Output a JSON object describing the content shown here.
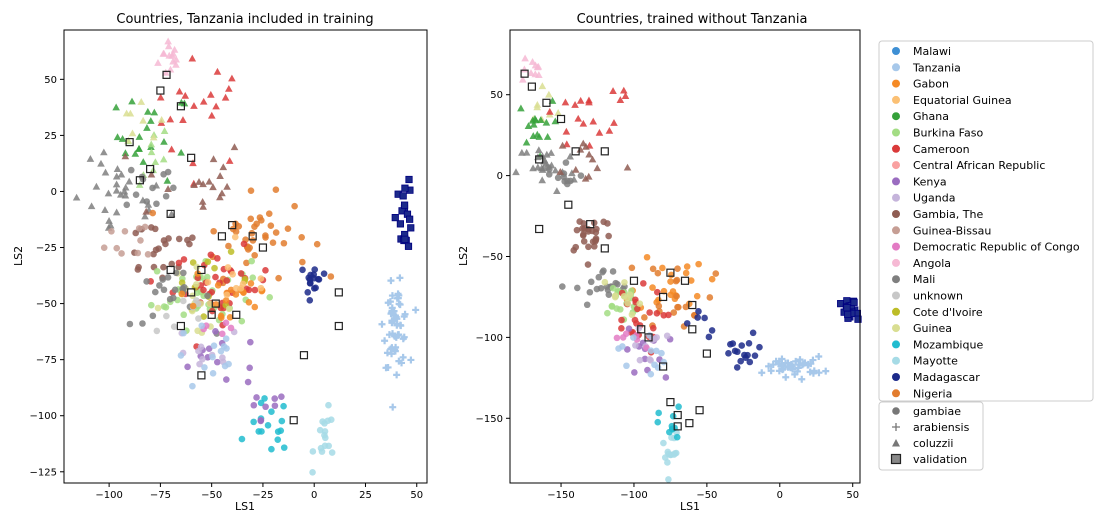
{
  "chart_data": [
    {
      "type": "scatter",
      "title": "Countries, Tanzania included in training",
      "xlabel": "LS1",
      "ylabel": "LS2",
      "xlim": [
        -122,
        55
      ],
      "ylim": [
        -130,
        72
      ],
      "xticks": [
        -100,
        -75,
        -50,
        -25,
        0,
        25,
        50
      ],
      "yticks": [
        -125,
        -100,
        -75,
        -50,
        -25,
        0,
        25,
        50
      ],
      "clusters": [
        {
          "country": "Angola",
          "marker": "triangle",
          "cx": -70,
          "cy": 60,
          "sx": 3,
          "sy": 5,
          "n": 14
        },
        {
          "country": "Cameroon",
          "marker": "triangle",
          "cx": -55,
          "cy": 35,
          "sx": 12,
          "sy": 12,
          "n": 20
        },
        {
          "country": "Ghana",
          "marker": "triangle",
          "cx": -78,
          "cy": 25,
          "sx": 9,
          "sy": 10,
          "n": 20
        },
        {
          "country": "Burkina Faso",
          "marker": "triangle",
          "cx": -85,
          "cy": 15,
          "sx": 8,
          "sy": 8,
          "n": 10
        },
        {
          "country": "Guinea",
          "marker": "triangle",
          "cx": -85,
          "cy": 30,
          "sx": 6,
          "sy": 6,
          "n": 8
        },
        {
          "country": "Mali",
          "marker": "triangle",
          "cx": -95,
          "cy": -5,
          "sx": 12,
          "sy": 9,
          "n": 30
        },
        {
          "country": "Mali",
          "marker": "circle",
          "cx": -80,
          "cy": 3,
          "sx": 6,
          "sy": 6,
          "n": 12
        },
        {
          "country": "Gambia, The",
          "marker": "triangle",
          "cx": -60,
          "cy": 5,
          "sx": 14,
          "sy": 10,
          "n": 18
        },
        {
          "country": "Gambia, The",
          "marker": "circle",
          "cx": -75,
          "cy": -25,
          "sx": 12,
          "sy": 8,
          "n": 22
        },
        {
          "country": "Guinea-Bissau",
          "marker": "circle",
          "cx": -85,
          "cy": -20,
          "sx": 8,
          "sy": 6,
          "n": 10
        },
        {
          "country": "Nigeria",
          "marker": "circle",
          "cx": -30,
          "cy": -20,
          "sx": 14,
          "sy": 9,
          "n": 40
        },
        {
          "country": "Burkina Faso",
          "marker": "circle",
          "cx": -55,
          "cy": -45,
          "sx": 12,
          "sy": 8,
          "n": 40
        },
        {
          "country": "Cameroon",
          "marker": "circle",
          "cx": -45,
          "cy": -42,
          "sx": 12,
          "sy": 8,
          "n": 40
        },
        {
          "country": "Cote d'Ivoire",
          "marker": "circle",
          "cx": -50,
          "cy": -40,
          "sx": 10,
          "sy": 6,
          "n": 12
        },
        {
          "country": "Guinea",
          "marker": "circle",
          "cx": -60,
          "cy": -50,
          "sx": 10,
          "sy": 7,
          "n": 15
        },
        {
          "country": "Mali",
          "marker": "circle",
          "cx": -70,
          "cy": -48,
          "sx": 10,
          "sy": 6,
          "n": 20
        },
        {
          "country": "unknown",
          "marker": "circle",
          "cx": -65,
          "cy": -55,
          "sx": 8,
          "sy": 6,
          "n": 8
        },
        {
          "country": "Gabon",
          "marker": "circle",
          "cx": -40,
          "cy": -45,
          "sx": 12,
          "sy": 10,
          "n": 20
        },
        {
          "country": "Equatorial Guinea",
          "marker": "circle",
          "cx": -35,
          "cy": -40,
          "sx": 8,
          "sy": 6,
          "n": 10
        },
        {
          "country": "Kenya",
          "marker": "circle",
          "cx": -45,
          "cy": -75,
          "sx": 14,
          "sy": 6,
          "n": 12
        },
        {
          "country": "Uganda",
          "marker": "circle",
          "cx": -55,
          "cy": -72,
          "sx": 10,
          "sy": 6,
          "n": 10
        },
        {
          "country": "Democratic Republic of Congo",
          "marker": "circle",
          "cx": -50,
          "cy": -65,
          "sx": 6,
          "sy": 5,
          "n": 5
        },
        {
          "country": "Tanzania",
          "marker": "circle",
          "cx": -50,
          "cy": -75,
          "sx": 10,
          "sy": 8,
          "n": 14
        },
        {
          "country": "Mozambique",
          "marker": "circle",
          "cx": -22,
          "cy": -105,
          "sx": 5,
          "sy": 6,
          "n": 16
        },
        {
          "country": "Kenya",
          "marker": "circle",
          "cx": -25,
          "cy": -100,
          "sx": 6,
          "sy": 6,
          "n": 8
        },
        {
          "country": "Mayotte",
          "marker": "circle",
          "cx": 6,
          "cy": -110,
          "sx": 3,
          "sy": 6,
          "n": 16
        },
        {
          "country": "Madagascar",
          "marker": "circle",
          "cx": 0,
          "cy": -40,
          "sx": 2,
          "sy": 5,
          "n": 16
        },
        {
          "country": "Madagascar",
          "marker": "square",
          "cx": 44,
          "cy": -10,
          "sx": 2,
          "sy": 8,
          "n": 20
        },
        {
          "country": "Tanzania",
          "marker": "plus",
          "cx": 40,
          "cy": -60,
          "sx": 3,
          "sy": 9,
          "n": 55
        }
      ],
      "validation": [
        [
          -72,
          52
        ],
        [
          -75,
          45
        ],
        [
          -65,
          38
        ],
        [
          -60,
          15
        ],
        [
          -90,
          22
        ],
        [
          -80,
          10
        ],
        [
          -85,
          5
        ],
        [
          -70,
          -10
        ],
        [
          -45,
          -20
        ],
        [
          -40,
          -15
        ],
        [
          -30,
          -20
        ],
        [
          -25,
          -25
        ],
        [
          -55,
          -35
        ],
        [
          -70,
          -35
        ],
        [
          -60,
          -45
        ],
        [
          -48,
          -50
        ],
        [
          -38,
          -55
        ],
        [
          -65,
          -60
        ],
        [
          -50,
          -55
        ],
        [
          -55,
          -82
        ],
        [
          -10,
          -102
        ],
        [
          -5,
          -73
        ],
        [
          12,
          -45
        ],
        [
          12,
          -60
        ]
      ]
    },
    {
      "type": "scatter",
      "title": "Countries, trained without Tanzania",
      "xlabel": "LS1",
      "ylabel": "LS2",
      "xlim": [
        -185,
        55
      ],
      "ylim": [
        -190,
        90
      ],
      "xticks": [
        -150,
        -100,
        -50,
        0,
        50
      ],
      "yticks": [
        -150,
        -100,
        -50,
        0,
        50
      ],
      "clusters": [
        {
          "country": "Angola",
          "marker": "triangle",
          "cx": -172,
          "cy": 65,
          "sx": 5,
          "sy": 5,
          "n": 10
        },
        {
          "country": "Guinea",
          "marker": "triangle",
          "cx": -162,
          "cy": 45,
          "sx": 6,
          "sy": 6,
          "n": 8
        },
        {
          "country": "Ghana",
          "marker": "triangle",
          "cx": -168,
          "cy": 30,
          "sx": 6,
          "sy": 8,
          "n": 16
        },
        {
          "country": "Cameroon",
          "marker": "triangle",
          "cx": -140,
          "cy": 30,
          "sx": 18,
          "sy": 10,
          "n": 14
        },
        {
          "country": "Cameroon",
          "marker": "triangle",
          "cx": -110,
          "cy": 45,
          "sx": 10,
          "sy": 8,
          "n": 5
        },
        {
          "country": "Mali",
          "marker": "triangle",
          "cx": -160,
          "cy": 5,
          "sx": 10,
          "sy": 8,
          "n": 24
        },
        {
          "country": "Mali",
          "marker": "circle",
          "cx": -150,
          "cy": 0,
          "sx": 8,
          "sy": 6,
          "n": 12
        },
        {
          "country": "Gambia, The",
          "marker": "triangle",
          "cx": -130,
          "cy": 10,
          "sx": 12,
          "sy": 8,
          "n": 12
        },
        {
          "country": "Gambia, The",
          "marker": "circle",
          "cx": -130,
          "cy": -35,
          "sx": 8,
          "sy": 7,
          "n": 26
        },
        {
          "country": "Mali",
          "marker": "circle",
          "cx": -120,
          "cy": -70,
          "sx": 10,
          "sy": 6,
          "n": 20
        },
        {
          "country": "Gabon",
          "marker": "circle",
          "cx": -75,
          "cy": -65,
          "sx": 12,
          "sy": 10,
          "n": 22
        },
        {
          "country": "Nigeria",
          "marker": "circle",
          "cx": -70,
          "cy": -70,
          "sx": 12,
          "sy": 12,
          "n": 20
        },
        {
          "country": "Burkina Faso",
          "marker": "circle",
          "cx": -110,
          "cy": -80,
          "sx": 8,
          "sy": 8,
          "n": 20
        },
        {
          "country": "Cameroon",
          "marker": "circle",
          "cx": -100,
          "cy": -90,
          "sx": 10,
          "sy": 10,
          "n": 24
        },
        {
          "country": "Guinea",
          "marker": "circle",
          "cx": -110,
          "cy": -75,
          "sx": 8,
          "sy": 6,
          "n": 10
        },
        {
          "country": "Kenya",
          "marker": "circle",
          "cx": -90,
          "cy": -110,
          "sx": 8,
          "sy": 8,
          "n": 12
        },
        {
          "country": "Uganda",
          "marker": "circle",
          "cx": -95,
          "cy": -105,
          "sx": 8,
          "sy": 6,
          "n": 10
        },
        {
          "country": "Democratic Republic of Congo",
          "marker": "circle",
          "cx": -100,
          "cy": -100,
          "sx": 6,
          "sy": 5,
          "n": 6
        },
        {
          "country": "Tanzania",
          "marker": "circle",
          "cx": -95,
          "cy": -110,
          "sx": 8,
          "sy": 8,
          "n": 12
        },
        {
          "country": "Mayotte",
          "marker": "circle",
          "cx": -75,
          "cy": -170,
          "sx": 3,
          "sy": 8,
          "n": 14
        },
        {
          "country": "Mozambique",
          "marker": "circle",
          "cx": -75,
          "cy": -155,
          "sx": 4,
          "sy": 6,
          "n": 10
        },
        {
          "country": "Madagascar",
          "marker": "circle",
          "cx": -25,
          "cy": -110,
          "sx": 8,
          "sy": 6,
          "n": 16
        },
        {
          "country": "Madagascar",
          "marker": "circle",
          "cx": -50,
          "cy": -92,
          "sx": 6,
          "sy": 5,
          "n": 6
        },
        {
          "country": "Madagascar",
          "marker": "square",
          "cx": 48,
          "cy": -85,
          "sx": 3,
          "sy": 4,
          "n": 20
        },
        {
          "country": "Tanzania",
          "marker": "plus",
          "cx": 10,
          "cy": -118,
          "sx": 10,
          "sy": 3,
          "n": 45
        }
      ],
      "validation": [
        [
          -175,
          63
        ],
        [
          -170,
          55
        ],
        [
          -160,
          45
        ],
        [
          -150,
          35
        ],
        [
          -165,
          10
        ],
        [
          -140,
          15
        ],
        [
          -120,
          15
        ],
        [
          -145,
          -18
        ],
        [
          -130,
          -30
        ],
        [
          -120,
          -45
        ],
        [
          -165,
          -33
        ],
        [
          -100,
          -65
        ],
        [
          -75,
          -60
        ],
        [
          -65,
          -65
        ],
        [
          -80,
          -75
        ],
        [
          -60,
          -80
        ],
        [
          -95,
          -95
        ],
        [
          -90,
          -100
        ],
        [
          -80,
          -118
        ],
        [
          -60,
          -95
        ],
        [
          -75,
          -140
        ],
        [
          -70,
          -148
        ],
        [
          -70,
          -155
        ],
        [
          -62,
          -153
        ],
        [
          -55,
          -145
        ],
        [
          -50,
          -110
        ]
      ]
    }
  ],
  "legend": {
    "countries": [
      {
        "label": "Malawi",
        "color": "#3e8fd4"
      },
      {
        "label": "Tanzania",
        "color": "#a7c8ea"
      },
      {
        "label": "Gabon",
        "color": "#f58a25"
      },
      {
        "label": "Equatorial Guinea",
        "color": "#fbc074"
      },
      {
        "label": "Ghana",
        "color": "#35a13a"
      },
      {
        "label": "Burkina Faso",
        "color": "#a3dd84"
      },
      {
        "label": "Cameroon",
        "color": "#da3a3a"
      },
      {
        "label": "Central African Republic",
        "color": "#f9a1a1"
      },
      {
        "label": "Kenya",
        "color": "#9a6cc0"
      },
      {
        "label": "Uganda",
        "color": "#c5b4db"
      },
      {
        "label": "Gambia, The",
        "color": "#8f5c52"
      },
      {
        "label": "Guinea-Bissau",
        "color": "#c69e94"
      },
      {
        "label": "Democratic Republic of Congo",
        "color": "#e37bc4"
      },
      {
        "label": "Angola",
        "color": "#f6b9d4"
      },
      {
        "label": "Mali",
        "color": "#7f7f7f"
      },
      {
        "label": "unknown",
        "color": "#c7c7c7"
      },
      {
        "label": "Cote d'Ivoire",
        "color": "#bdbd27"
      },
      {
        "label": "Guinea",
        "color": "#d9de92"
      },
      {
        "label": "Mozambique",
        "color": "#21bccf"
      },
      {
        "label": "Mayotte",
        "color": "#a6dbe6"
      },
      {
        "label": "Madagascar",
        "color": "#1c2a8a"
      },
      {
        "label": "Nigeria",
        "color": "#e27c2e"
      }
    ],
    "markers": [
      {
        "label": "gambiae",
        "marker": "circle"
      },
      {
        "label": "arabiensis",
        "marker": "plus"
      },
      {
        "label": "coluzzii",
        "marker": "triangle"
      },
      {
        "label": "validation",
        "marker": "square"
      }
    ]
  }
}
